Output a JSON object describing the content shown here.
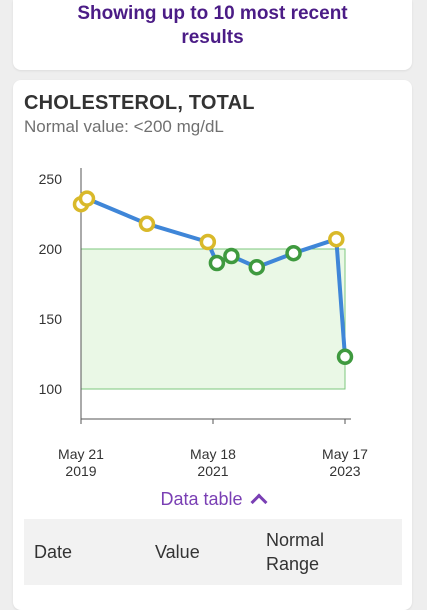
{
  "notice": {
    "line1": "Showing up to 10 most recent",
    "line2": "results"
  },
  "card": {
    "title": "CHOLESTEROL, TOTAL",
    "subtitle": "Normal value: <200 mg/dL"
  },
  "chart_data": {
    "type": "line",
    "y_ticks": [
      "250",
      "200",
      "150",
      "100"
    ],
    "x_ticks": [
      {
        "line1": "May 21",
        "line2": "2019"
      },
      {
        "line1": "May 18",
        "line2": "2021"
      },
      {
        "line1": "May 17",
        "line2": "2023"
      }
    ],
    "normal_range": [
      100,
      200
    ],
    "ylim": [
      90,
      260
    ],
    "points": [
      {
        "x": "2019-05-21",
        "y": 232,
        "status": "high"
      },
      {
        "x": "2019-06-23",
        "y": 236,
        "status": "high"
      },
      {
        "x": "2020-05-19",
        "y": 218,
        "status": "high"
      },
      {
        "x": "2021-04-20",
        "y": 205,
        "status": "high"
      },
      {
        "x": "2021-06-09",
        "y": 190,
        "status": "normal"
      },
      {
        "x": "2021-08-28",
        "y": 195,
        "status": "normal"
      },
      {
        "x": "2022-01-15",
        "y": 187,
        "status": "normal"
      },
      {
        "x": "2022-08-06",
        "y": 197,
        "status": "normal"
      },
      {
        "x": "2023-03-30",
        "y": 207,
        "status": "high"
      },
      {
        "x": "2023-05-17",
        "y": 123,
        "status": "normal"
      }
    ],
    "colors": {
      "line": "#3f86d8",
      "high_marker": "#d9b92a",
      "normal_marker": "#3f9a3f",
      "range_fill": "#eaf8e6",
      "range_stroke": "#7ec77e"
    }
  },
  "data_table": {
    "toggle_label": "Data table",
    "headers": {
      "date": "Date",
      "value": "Value",
      "normal_line1": "Normal",
      "normal_line2": "Range"
    }
  }
}
